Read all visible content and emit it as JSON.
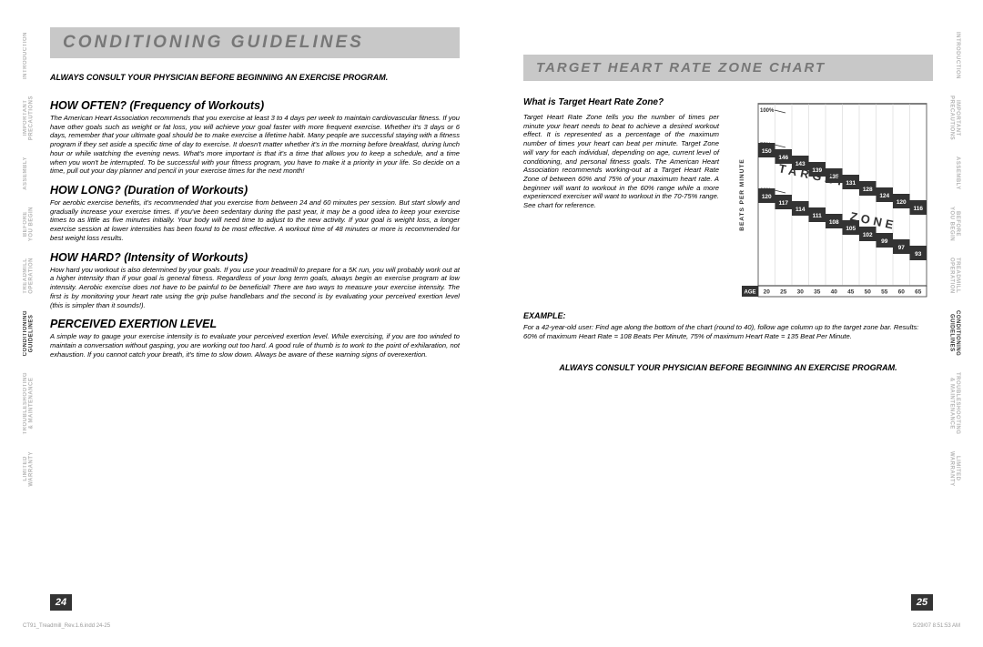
{
  "tabs": [
    "INTRODUCTION",
    "IMPORTANT\nPRECAUTIONS",
    "ASSEMBLY",
    "BEFORE\nYOU BEGIN",
    "TREADMILL\nOPERATION",
    "CONDITIONING\nGUIDELINES",
    "TROUBLESHOOTING\n& MAINTENANCE",
    "LIMITED\nWARRANTY"
  ],
  "activeTab": 5,
  "left": {
    "title": "CONDITIONING GUIDELINES",
    "consult": "ALWAYS CONSULT YOUR PHYSICIAN BEFORE BEGINNING AN EXERCISE PROGRAM.",
    "sections": [
      {
        "h": "HOW OFTEN? (Frequency of Workouts)",
        "p": "The American Heart Association recommends that you exercise at least 3 to 4 days per week to maintain cardiovascular fitness. If you have other goals such as weight or fat loss, you will achieve your goal faster with more frequent exercise. Whether it's 3 days or 6 days, remember that your ultimate goal should be to make exercise a lifetime habit. Many people are successful staying with a fitness program if they set aside a specific time of day to exercise. It doesn't matter whether it's in the morning before breakfast, during lunch hour or while watching the evening news. What's more important is that it's a time that allows you to keep a schedule, and a time when you won't be interrupted. To be successful with your fitness program, you have to make it a priority in your life. So decide on a time, pull out your day planner and pencil in your exercise times for the next month!"
      },
      {
        "h": "HOW LONG? (Duration of Workouts)",
        "p": "For aerobic exercise benefits, it's recommended that you exercise from between 24 and 60 minutes per session. But start slowly and gradually increase your exercise times. If you've been sedentary during the past year, it may be a good idea to keep your exercise times to as little as five minutes initially. Your body will need time to adjust to the new activity. If your goal is weight loss, a longer exercise session at lower intensities has been found to be most effective. A workout time of 48 minutes or more is recommended for best weight loss results."
      },
      {
        "h": "HOW HARD? (Intensity of Workouts)",
        "p": "How hard you workout is also determined by your goals. If you use your treadmill to prepare for a 5K run, you will probably work out at a higher intensity than if your goal is general fitness. Regardless of your long term goals, always begin an exercise program at low intensity. Aerobic exercise does not have to be painful to be beneficial! There are two ways to measure your exercise intensity. The first is by monitoring your heart rate using the grip pulse handlebars and the second is by evaluating your perceived exertion level (this is simpler than it sounds!)."
      },
      {
        "h": "PERCEIVED EXERTION LEVEL",
        "p": "A simple way to gauge your exercise intensity is to evaluate your perceived exertion level. While exercising, if you are too winded to maintain a conversation without gasping, you are working out too hard. A good rule of thumb is to work to the point of exhilaration, not exhaustion. If you cannot catch your breath, it's time to slow down. Always be aware of these warning signs of overexertion."
      }
    ],
    "pageNum": "24"
  },
  "right": {
    "title": "TARGET HEART RATE ZONE CHART",
    "sub": "What is Target Heart Rate Zone?",
    "para": "Target Heart Rate Zone tells you the number of times per minute your heart needs to beat to achieve a desired workout effect. It is represented as a percentage of the maximum number of times your heart can beat per minute. Target Zone will vary for each individual, depending on age, current level of conditioning, and personal fitness goals. The American Heart Association recommends working-out at a Target Heart Rate Zone of between 60% and 75% of your maximum heart rate. A beginner will want to workout in the 60% range while a more experienced exerciser will want to workout in the 70-75% range. See chart for reference.",
    "exampleHead": "EXAMPLE:",
    "example": "For a 42-year-old user: Find age along the bottom of the chart (round to 40), follow age column up to the target zone bar. Results: 60% of maximum Heart Rate = 108 Beats Per Minute, 75% of maximum Heart Rate = 135 Beat Per Minute.",
    "consult": "ALWAYS CONSULT YOUR PHYSICIAN BEFORE BEGINNING AN EXERCISE PROGRAM.",
    "pageNum": "25",
    "chart": {
      "yLabel": "BEATS PER MINUTE",
      "ageLabel": "AGE",
      "ages": [
        "20",
        "25",
        "30",
        "35",
        "40",
        "45",
        "50",
        "55",
        "60",
        "65"
      ],
      "pctLabels": [
        "100%",
        "75%",
        "60%"
      ],
      "targetText": "TARGET",
      "zoneText": "ZONE",
      "row75": [
        "150",
        "146",
        "143",
        "139",
        "135",
        "131",
        "128",
        "124",
        "120",
        "116"
      ],
      "row60": [
        "120",
        "117",
        "114",
        "111",
        "108",
        "105",
        "102",
        "99",
        "97",
        "93"
      ],
      "colors": {
        "bg": "#ffffff",
        "band": "#333333",
        "text": "#ffffff",
        "border": "#000000",
        "axis": "#333333"
      }
    }
  },
  "footer": {
    "left": "CT91_Treadmill_Rev.1.6.indd   24-25",
    "right": "5/29/07   8:51:53 AM"
  }
}
